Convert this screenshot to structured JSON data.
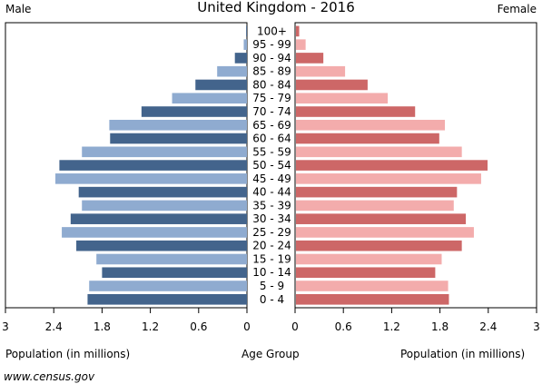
{
  "chart_data": {
    "type": "bar",
    "title": "United Kingdom - 2016",
    "left_label": "Male",
    "right_label": "Female",
    "xlabel_left": "Population (in millions)",
    "xlabel_center": "Age Group",
    "xlabel_right": "Population (in millions)",
    "source": "www.census.gov",
    "xlim": [
      0,
      3
    ],
    "xticks": [
      "3",
      "2.4",
      "1.8",
      "1.2",
      "0.6",
      "0",
      "0",
      "0.6",
      "1.2",
      "1.8",
      "2.4",
      "3"
    ],
    "xtick_values_left": [
      3,
      2.4,
      1.8,
      1.2,
      0.6,
      0
    ],
    "xtick_values_right": [
      0,
      0.6,
      1.2,
      1.8,
      2.4,
      3
    ],
    "categories": [
      "100+",
      "95 - 99",
      "90 - 94",
      "85 - 89",
      "80 - 84",
      "75 - 79",
      "70 - 74",
      "65 - 69",
      "60 - 64",
      "55 - 59",
      "50 - 54",
      "45 - 49",
      "40 - 44",
      "35 - 39",
      "30 - 34",
      "25 - 29",
      "20 - 24",
      "15 - 19",
      "10 - 14",
      "5 - 9",
      "0 - 4"
    ],
    "series": [
      {
        "side": "left",
        "values": [
          0.01,
          0.04,
          0.15,
          0.37,
          0.64,
          0.93,
          1.31,
          1.71,
          1.7,
          2.05,
          2.33,
          2.38,
          2.09,
          2.05,
          2.19,
          2.3,
          2.12,
          1.87,
          1.8,
          1.96,
          1.98
        ]
      },
      {
        "side": "right",
        "values": [
          0.04,
          0.12,
          0.34,
          0.61,
          0.89,
          1.14,
          1.48,
          1.85,
          1.78,
          2.06,
          2.38,
          2.3,
          2.0,
          1.96,
          2.11,
          2.21,
          2.06,
          1.81,
          1.73,
          1.89,
          1.9
        ]
      }
    ],
    "colors": {
      "male_dark": "#43648c",
      "male_light": "#8fabd0",
      "female_dark": "#cd6767",
      "female_light": "#f3acac"
    }
  }
}
